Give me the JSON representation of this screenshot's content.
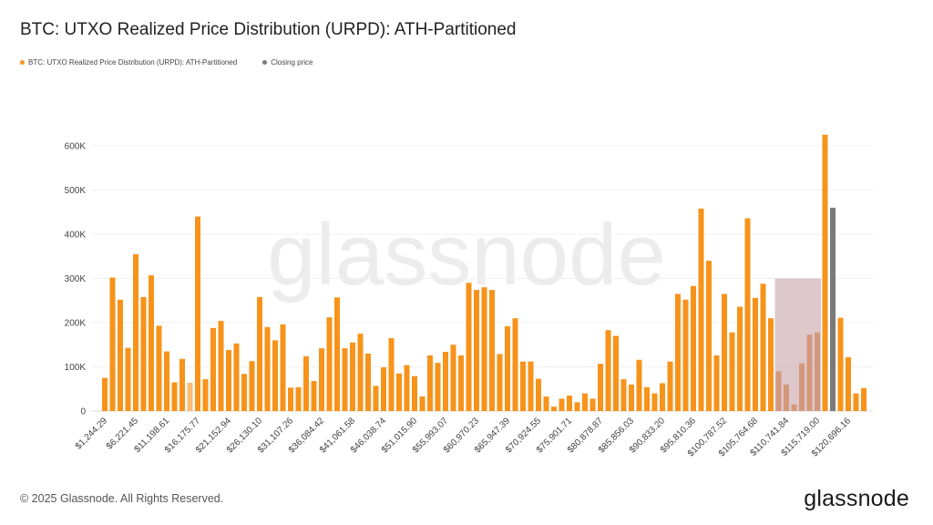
{
  "header": {
    "title": "BTC: UTXO Realized Price Distribution (URPD): ATH-Partitioned"
  },
  "legend": [
    {
      "label": "BTC: UTXO Realized Price Distribution (URPD): ATH-Partitioned",
      "color": "#f7931a"
    },
    {
      "label": "Closing price",
      "color": "#7a7a7a"
    }
  ],
  "footer": {
    "copyright": "© 2025 Glassnode. All Rights Reserved.",
    "logo": "glassnode",
    "watermark": "glassnode"
  },
  "chart_data": {
    "type": "bar",
    "title": "BTC: UTXO Realized Price Distribution (URPD): ATH-Partitioned",
    "xlabel": "",
    "ylabel": "",
    "ylim": [
      0,
      600000
    ],
    "yticks": [
      "0",
      "100K",
      "200K",
      "300K",
      "400K",
      "500K",
      "600K"
    ],
    "bin_width": 1244.29,
    "xtick_labels": [
      "$1,244.29",
      "$6,221.45",
      "$11,198.61",
      "$16,175.77",
      "$21,152.94",
      "$26,130.10",
      "$31,107.26",
      "$36,084.42",
      "$41,061.58",
      "$46,038.74",
      "$51,015.90",
      "$55,993.07",
      "$60,970.23",
      "$65,947.39",
      "$70,924.55",
      "$75,901.71",
      "$80,878.87",
      "$85,856.03",
      "$90,833.20",
      "$95,810.36",
      "$100,787.52",
      "$105,764.68",
      "$110,741.84",
      "$115,719.00",
      "$120,696.16"
    ],
    "values": [
      75000,
      302000,
      252000,
      143000,
      355000,
      258000,
      307000,
      193000,
      135000,
      65000,
      118000,
      64000,
      440000,
      72000,
      188000,
      204000,
      138000,
      153000,
      84000,
      113000,
      258000,
      190000,
      160000,
      196000,
      53000,
      54000,
      124000,
      68000,
      142000,
      212000,
      257000,
      142000,
      155000,
      175000,
      130000,
      57000,
      99000,
      165000,
      85000,
      104000,
      79000,
      33000,
      126000,
      109000,
      134000,
      150000,
      126000,
      290000,
      274000,
      280000,
      274000,
      129000,
      192000,
      210000,
      112000,
      112000,
      73000,
      33000,
      10000,
      28000,
      35000,
      20000,
      40000,
      28000,
      107000,
      183000,
      170000,
      72000,
      60000,
      116000,
      54000,
      40000,
      63000,
      112000,
      265000,
      252000,
      283000,
      458000,
      340000,
      126000,
      265000,
      178000,
      236000,
      436000,
      256000,
      288000,
      210000,
      90000,
      60000,
      15000,
      108000,
      173000,
      178000,
      625000,
      460000,
      211000,
      122000,
      40000,
      52000
    ],
    "closing_price_bar_index": 94,
    "highlight_range": {
      "from_bar": 87,
      "to_bar": 92,
      "y_max": 300000,
      "color": "#c9a3a8"
    },
    "bar_color": "#f7931a",
    "closing_color": "#7a7a7a",
    "grid": true,
    "legend_position": "top-left"
  }
}
